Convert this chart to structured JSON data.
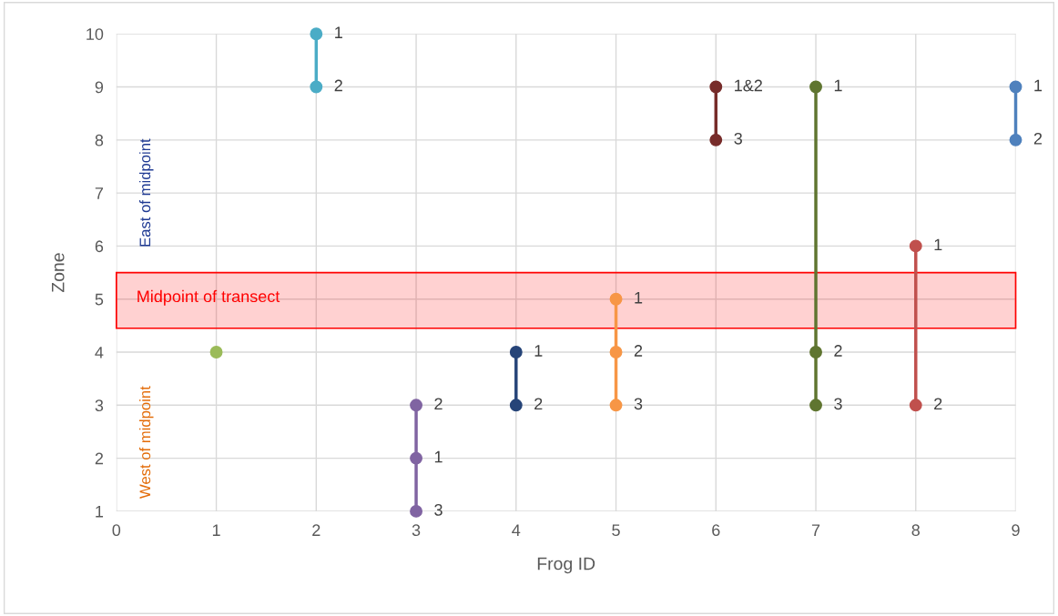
{
  "chart_data": {
    "type": "line",
    "xlabel": "Frog ID",
    "ylabel": "Zone",
    "xlim": [
      0,
      9
    ],
    "xticks": [
      0,
      1,
      2,
      3,
      4,
      5,
      6,
      7,
      8,
      9
    ],
    "ylim": [
      1,
      10
    ],
    "yticks": [
      1,
      2,
      3,
      4,
      5,
      6,
      7,
      8,
      9,
      10
    ],
    "grid": true,
    "legend": false,
    "marker": "circle",
    "line_style": "solid",
    "series": [
      {
        "color": "#9bbb59",
        "x": [
          1
        ],
        "values": [
          4
        ]
      },
      {
        "color": "#4bacc6",
        "x": [
          2,
          2
        ],
        "values": [
          10,
          9
        ]
      },
      {
        "color": "#8064a2",
        "x": [
          3,
          3,
          3
        ],
        "values": [
          3,
          2,
          1
        ]
      },
      {
        "color": "#264478",
        "x": [
          4,
          4
        ],
        "values": [
          4,
          3
        ]
      },
      {
        "color": "#f79646",
        "x": [
          5,
          5,
          5
        ],
        "values": [
          5,
          4,
          3
        ]
      },
      {
        "color": "#772c2a",
        "x": [
          6,
          6
        ],
        "values": [
          9,
          8
        ]
      },
      {
        "color": "#5f7530",
        "x": [
          7,
          7,
          7
        ],
        "values": [
          9,
          4,
          3
        ]
      },
      {
        "color": "#c0504d",
        "x": [
          8,
          8
        ],
        "values": [
          6,
          3
        ]
      },
      {
        "color": "#4f81bd",
        "x": [
          9,
          9
        ],
        "values": [
          9,
          8
        ]
      }
    ],
    "bands": [
      {
        "axis": "y",
        "from": 4.45,
        "to": 5.5,
        "label": "Midpoint of transect",
        "color": "#ff0000"
      }
    ],
    "annotations": [
      "East of midpoint",
      "West of midpoint",
      {
        "text": "1",
        "x": 2,
        "y": 10
      },
      {
        "text": "2",
        "x": 2,
        "y": 9
      },
      {
        "text": "2",
        "x": 3,
        "y": 3
      },
      {
        "text": "1",
        "x": 3,
        "y": 2
      },
      {
        "text": "3",
        "x": 3,
        "y": 1
      },
      {
        "text": "1",
        "x": 4,
        "y": 4
      },
      {
        "text": "2",
        "x": 4,
        "y": 3
      },
      {
        "text": "1",
        "x": 5,
        "y": 5
      },
      {
        "text": "2",
        "x": 5,
        "y": 4
      },
      {
        "text": "3",
        "x": 5,
        "y": 3
      },
      {
        "text": "1&2",
        "x": 6,
        "y": 9
      },
      {
        "text": "3",
        "x": 6,
        "y": 8
      },
      {
        "text": "1",
        "x": 7,
        "y": 9
      },
      {
        "text": "2",
        "x": 7,
        "y": 4
      },
      {
        "text": "3",
        "x": 7,
        "y": 3
      },
      {
        "text": "1",
        "x": 8,
        "y": 6
      },
      {
        "text": "2",
        "x": 8,
        "y": 3
      },
      {
        "text": "1",
        "x": 9,
        "y": 9
      },
      {
        "text": "2",
        "x": 9,
        "y": 8
      }
    ]
  }
}
